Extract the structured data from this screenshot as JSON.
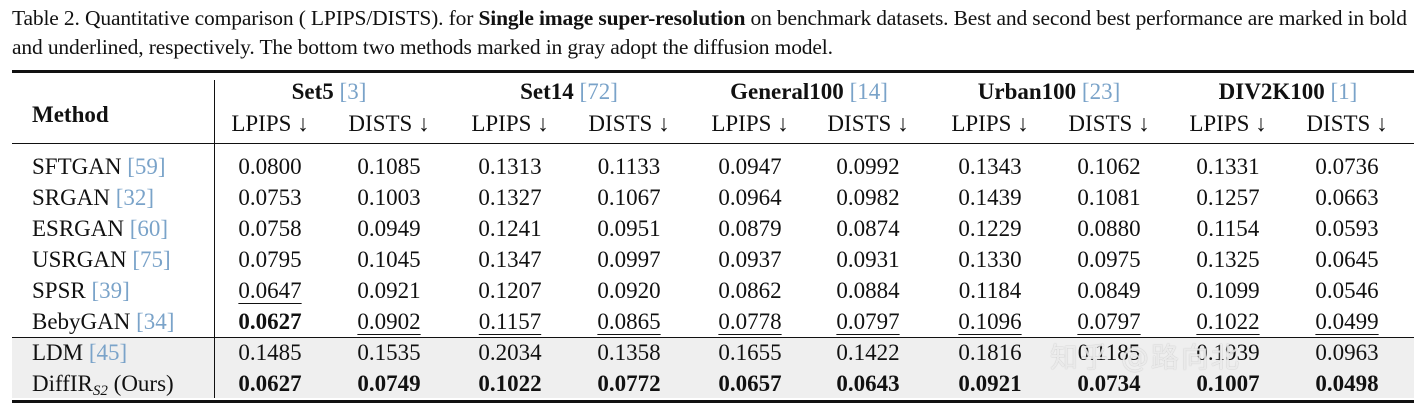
{
  "caption": {
    "prefix": "Table 2. Quantitative comparison ( LPIPS/DISTS). for ",
    "bold": "Single image super-resolution",
    "suffix": " on benchmark datasets.  Best and second best performance are marked in bold and underlined, respectively. The bottom two methods marked in gray adopt the diffusion model."
  },
  "header": {
    "method": "Method",
    "datasets": [
      {
        "name": "Set5",
        "ref": "[3]"
      },
      {
        "name": "Set14",
        "ref": "[72]"
      },
      {
        "name": "General100",
        "ref": "[14]"
      },
      {
        "name": "Urban100",
        "ref": "[23]"
      },
      {
        "name": "DIV2K100",
        "ref": "[1]"
      }
    ],
    "metrics": [
      "LPIPS ↓",
      "DISTS ↓"
    ]
  },
  "rows": [
    {
      "method": "SFTGAN",
      "ref": "[59]",
      "values": [
        "0.0800",
        "0.1085",
        "0.1313",
        "0.1133",
        "0.0947",
        "0.0992",
        "0.1343",
        "0.1062",
        "0.1331",
        "0.0736"
      ],
      "styles": [
        "",
        "",
        "",
        "",
        "",
        "",
        "",
        "",
        "",
        ""
      ]
    },
    {
      "method": "SRGAN",
      "ref": "[32]",
      "values": [
        "0.0753",
        "0.1003",
        "0.1327",
        "0.1067",
        "0.0964",
        "0.0982",
        "0.1439",
        "0.1081",
        "0.1257",
        "0.0663"
      ],
      "styles": [
        "",
        "",
        "",
        "",
        "",
        "",
        "",
        "",
        "",
        ""
      ]
    },
    {
      "method": "ESRGAN",
      "ref": "[60]",
      "values": [
        "0.0758",
        "0.0949",
        "0.1241",
        "0.0951",
        "0.0879",
        "0.0874",
        "0.1229",
        "0.0880",
        "0.1154",
        "0.0593"
      ],
      "styles": [
        "",
        "",
        "",
        "",
        "",
        "",
        "",
        "",
        "",
        ""
      ]
    },
    {
      "method": "USRGAN",
      "ref": "[75]",
      "values": [
        "0.0795",
        "0.1045",
        "0.1347",
        "0.0997",
        "0.0937",
        "0.0931",
        "0.1330",
        "0.0975",
        "0.1325",
        "0.0645"
      ],
      "styles": [
        "",
        "",
        "",
        "",
        "",
        "",
        "",
        "",
        "",
        ""
      ]
    },
    {
      "method": "SPSR",
      "ref": "[39]",
      "values": [
        "0.0647",
        "0.0921",
        "0.1207",
        "0.0920",
        "0.0862",
        "0.0884",
        "0.1184",
        "0.0849",
        "0.1099",
        "0.0546"
      ],
      "styles": [
        "ul",
        "",
        "",
        "",
        "",
        "",
        "",
        "",
        "",
        ""
      ]
    },
    {
      "method": "BebyGAN",
      "ref": "[34]",
      "values": [
        "0.0627",
        "0.0902",
        "0.1157",
        "0.0865",
        "0.0778",
        "0.0797",
        "0.1096",
        "0.0797",
        "0.1022",
        "0.0499"
      ],
      "styles": [
        "bold",
        "ul",
        "ul",
        "ul",
        "ul",
        "ul",
        "ul",
        "ul",
        "ul",
        "ul"
      ]
    },
    {
      "method": "LDM",
      "ref": "[45]",
      "values": [
        "0.1485",
        "0.1535",
        "0.2034",
        "0.1358",
        "0.1655",
        "0.1422",
        "0.1816",
        "0.1185",
        "0.1939",
        "0.0963"
      ],
      "styles": [
        "",
        "",
        "",
        "",
        "",
        "",
        "",
        "",
        "",
        ""
      ]
    },
    {
      "method": "DiffIR",
      "method_sub": "S2",
      "method_suffix": " (Ours)",
      "values": [
        "0.0627",
        "0.0749",
        "0.1022",
        "0.0772",
        "0.0657",
        "0.0643",
        "0.0921",
        "0.0734",
        "0.1007",
        "0.0498"
      ],
      "styles": [
        "bold",
        "bold",
        "bold",
        "bold",
        "bold",
        "bold",
        "bold",
        "bold",
        "bold",
        "bold"
      ]
    }
  ],
  "watermark": "知乎 @路向北"
}
